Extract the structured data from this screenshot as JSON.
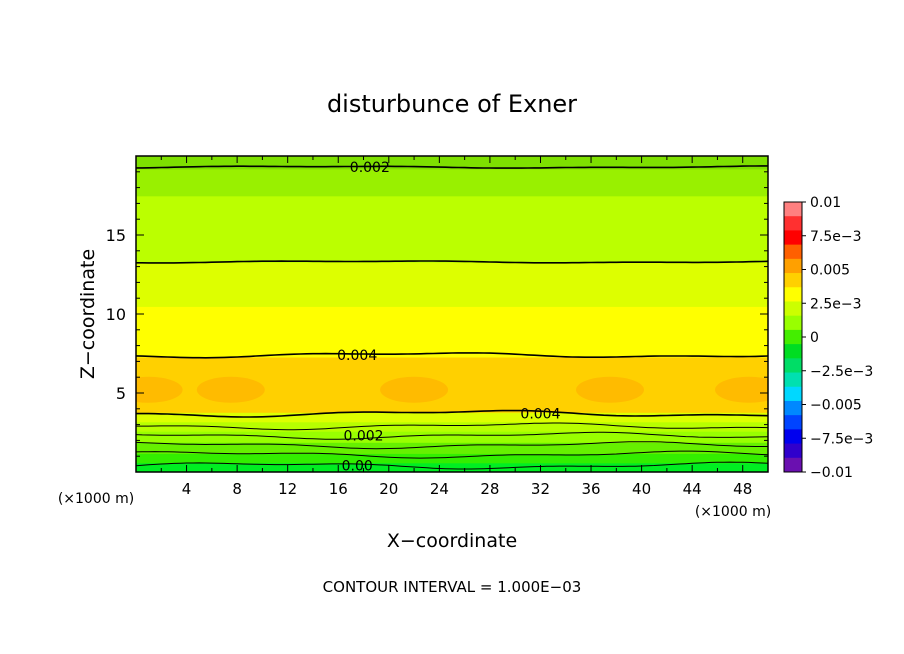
{
  "chart_data": {
    "type": "heatmap",
    "title": "disturbunce of Exner",
    "xlabel": "X−coordinate",
    "ylabel": "Z−coordinate",
    "x_unit_label": "(×1000 m)",
    "y_unit_label": "(×1000 m)",
    "xlim": [
      0,
      50
    ],
    "ylim": [
      0,
      20
    ],
    "x_ticks": [
      4,
      8,
      12,
      16,
      20,
      24,
      28,
      32,
      36,
      40,
      44,
      48
    ],
    "y_ticks": [
      5,
      10,
      15
    ],
    "grid": false,
    "footer": "CONTOUR INTERVAL = 1.000E−03",
    "colorbar": {
      "labels": [
        "0.01",
        "7.5e−3",
        "0.005",
        "2.5e−3",
        "0",
        "−2.5e−3",
        "−0.005",
        "−7.5e−3",
        "−0.01"
      ],
      "levels": [
        0.01,
        0.0075,
        0.005,
        0.0025,
        0,
        -0.0025,
        -0.005,
        -0.0075,
        -0.01
      ],
      "colors": [
        "#ff8080",
        "#ff3030",
        "#ff0000",
        "#ff6000",
        "#ffa000",
        "#ffd000",
        "#ffff00",
        "#ccff00",
        "#99ff00",
        "#44ee00",
        "#00dd22",
        "#00dd66",
        "#00e0b0",
        "#00d8ff",
        "#0088ff",
        "#0044ff",
        "#0000ee",
        "#3000cc",
        "#6a10b0"
      ]
    },
    "bands": [
      {
        "z0": 0.0,
        "z1": 0.6,
        "value": 0.0,
        "color": "#00ee22"
      },
      {
        "z0": 0.6,
        "z1": 1.2,
        "value": 0.0005,
        "color": "#33ee00"
      },
      {
        "z0": 1.2,
        "z1": 1.9,
        "value": 0.0015,
        "color": "#66f000"
      },
      {
        "z0": 1.9,
        "z1": 2.6,
        "value": 0.002,
        "color": "#99ff00"
      },
      {
        "z0": 2.6,
        "z1": 3.2,
        "value": 0.003,
        "color": "#b8ff00"
      },
      {
        "z0": 3.2,
        "z1": 3.8,
        "value": 0.0035,
        "color": "#ddff00"
      },
      {
        "z0": 3.8,
        "z1": 7.3,
        "value": 0.0045,
        "color": "#ffd000"
      },
      {
        "z0": 7.3,
        "z1": 10.5,
        "value": 0.0035,
        "color": "#ffff00"
      },
      {
        "z0": 10.5,
        "z1": 13.3,
        "value": 0.003,
        "color": "#ddff00"
      },
      {
        "z0": 13.3,
        "z1": 17.5,
        "value": 0.0025,
        "color": "#bbff00"
      },
      {
        "z0": 17.5,
        "z1": 19.2,
        "value": 0.002,
        "color": "#99f000"
      },
      {
        "z0": 19.2,
        "z1": 20.0,
        "value": 0.0015,
        "color": "#7ee000"
      }
    ],
    "blobs": [
      {
        "x": 7.5,
        "z": 5.2,
        "value": 0.005
      },
      {
        "x": 22.0,
        "z": 5.2,
        "value": 0.005
      },
      {
        "x": 37.5,
        "z": 5.2,
        "value": 0.005
      },
      {
        "x": 1.0,
        "z": 5.2,
        "value": 0.005
      },
      {
        "x": 48.5,
        "z": 5.2,
        "value": 0.005
      }
    ],
    "contours": [
      {
        "z": 0.4,
        "value": 0.0
      },
      {
        "z": 1.1,
        "value": 0.001
      },
      {
        "z": 1.7,
        "value": 0.001
      },
      {
        "z": 2.3,
        "value": 0.002
      },
      {
        "z": 2.9,
        "value": 0.002
      },
      {
        "z": 3.7,
        "value": 0.004
      },
      {
        "z": 7.4,
        "value": 0.004
      },
      {
        "z": 13.3,
        "value": 0.003
      },
      {
        "z": 19.3,
        "value": 0.002
      }
    ],
    "contour_labels": [
      {
        "text": "0.002",
        "x": 18.5,
        "z": 19.3
      },
      {
        "text": "0.004",
        "x": 17.5,
        "z": 7.4
      },
      {
        "text": "0.004",
        "x": 32.0,
        "z": 3.7
      },
      {
        "text": "0.002",
        "x": 18.0,
        "z": 2.3
      },
      {
        "text": "0.00",
        "x": 17.5,
        "z": 0.4
      }
    ]
  }
}
